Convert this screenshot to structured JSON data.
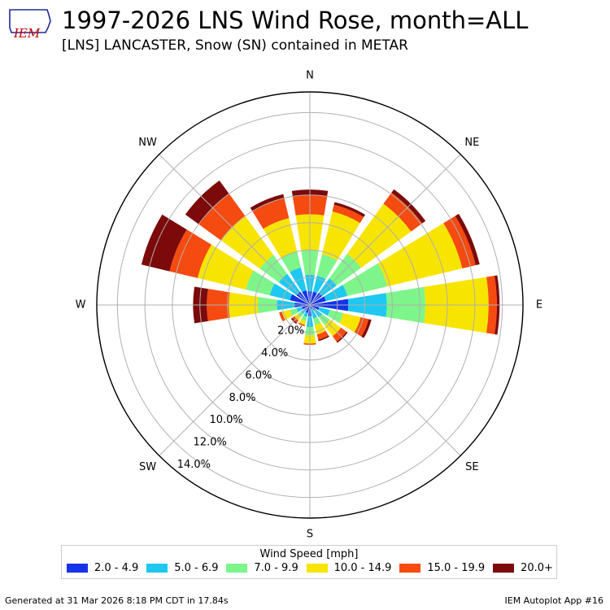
{
  "logo": {
    "text": "IEM",
    "icon": "iowa-state-outline-icon",
    "color": "#c00000",
    "outline_color": "#1f2a9c"
  },
  "title": "1997-2026 LNS Wind Rose, month=ALL",
  "subtitle": "[LNS] LANCASTER, Snow (SN) contained in METAR",
  "footer": {
    "left": "Generated at 31 Mar 2026 8:18 PM CDT in 17.84s",
    "right": "IEM Autoplot App #16"
  },
  "chart_data": {
    "type": "windrose",
    "directions": [
      "N",
      "NNE",
      "NE",
      "ENE",
      "E",
      "ESE",
      "SE",
      "SSE",
      "S",
      "SSW",
      "SW",
      "WSW",
      "W",
      "WNW",
      "NW",
      "NNW"
    ],
    "compass_labels": [
      "N",
      "NE",
      "E",
      "SE",
      "S",
      "SW",
      "W",
      "NW"
    ],
    "radial_ticks": [
      2.0,
      4.0,
      6.0,
      8.0,
      10.0,
      12.0,
      14.0
    ],
    "radial_tick_labels": [
      "2.0%",
      "4.0%",
      "6.0%",
      "8.0%",
      "10.0%",
      "12.0%",
      "14.0%"
    ],
    "rmax": 15.5,
    "legend_title": "Wind Speed [mph]",
    "bins": [
      {
        "label": "2.0 - 4.9",
        "color": "#1533e8"
      },
      {
        "label": "5.0 - 6.9",
        "color": "#1ec8f0"
      },
      {
        "label": "7.0 - 9.9",
        "color": "#7df58a"
      },
      {
        "label": "10.0 - 14.9",
        "color": "#f7e400"
      },
      {
        "label": "15.0 - 19.9",
        "color": "#f54a10"
      },
      {
        "label": "20.0+",
        "color": "#7c0a0a"
      }
    ],
    "cumulative_percent": [
      [
        1.0,
        2.2,
        4.0,
        6.6,
        8.0,
        8.4
      ],
      [
        1.0,
        2.2,
        3.8,
        7.0,
        7.5,
        7.7
      ],
      [
        1.1,
        2.4,
        4.6,
        9.1,
        10.1,
        10.4
      ],
      [
        1.2,
        2.8,
        5.8,
        11.4,
        12.4,
        12.7
      ],
      [
        2.8,
        5.6,
        8.4,
        13.0,
        13.6,
        13.8
      ],
      [
        0.7,
        1.5,
        2.5,
        3.8,
        4.4,
        4.6
      ],
      [
        0.5,
        1.1,
        1.8,
        2.8,
        3.3,
        3.4
      ],
      [
        0.3,
        1.0,
        1.5,
        2.2,
        2.6,
        2.7
      ],
      [
        0.8,
        1.6,
        2.2,
        2.8,
        2.9,
        2.9
      ],
      [
        0.6,
        0.9,
        1.2,
        1.5,
        1.6,
        1.6
      ],
      [
        0.5,
        0.8,
        1.1,
        1.4,
        1.6,
        1.7
      ],
      [
        0.6,
        1.0,
        1.5,
        2.1,
        2.3,
        2.3
      ],
      [
        1.1,
        2.4,
        3.8,
        5.9,
        7.5,
        8.5
      ],
      [
        1.5,
        3.0,
        4.8,
        8.4,
        10.5,
        12.6
      ],
      [
        1.2,
        2.8,
        4.5,
        8.0,
        10.0,
        11.2
      ],
      [
        1.1,
        2.8,
        4.0,
        6.5,
        8.0,
        8.3
      ]
    ]
  }
}
